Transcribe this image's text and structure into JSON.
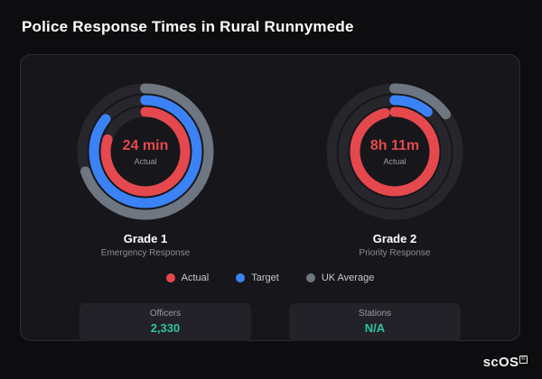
{
  "title": "Police Response Times in Rural Runnymede",
  "logo": {
    "text": "scOS",
    "reg": "®"
  },
  "legend": [
    {
      "label": "Actual",
      "color": "#e5484d"
    },
    {
      "label": "Target",
      "color": "#3b82f6"
    },
    {
      "label": "UK Average",
      "color": "#6e7681"
    }
  ],
  "stats": [
    {
      "label": "Officers",
      "value": "2,330"
    },
    {
      "label": "Stations",
      "value": "N/A"
    }
  ],
  "chart_data": [
    {
      "type": "radial",
      "name": "Grade 1",
      "subtitle": "Emergency Response",
      "center_value": "24 min",
      "center_label": "Actual",
      "max_percent": 100,
      "series": [
        {
          "name": "Actual",
          "percent": 80,
          "color": "#e5484d"
        },
        {
          "name": "Target",
          "percent": 86,
          "color": "#3b82f6"
        },
        {
          "name": "UK Average",
          "percent": 70,
          "color": "#6e7681"
        }
      ]
    },
    {
      "type": "radial",
      "name": "Grade 2",
      "subtitle": "Priority Response",
      "center_value": "8h 11m",
      "center_label": "Actual",
      "max_percent": 100,
      "series": [
        {
          "name": "Actual",
          "percent": 96,
          "color": "#e5484d"
        },
        {
          "name": "Target",
          "percent": 11,
          "color": "#3b82f6"
        },
        {
          "name": "UK Average",
          "percent": 15,
          "color": "#6e7681"
        }
      ]
    }
  ],
  "gauge_style": {
    "track_color": "#26262c",
    "radii": [
      44,
      57,
      70
    ],
    "stroke_width": 11
  }
}
